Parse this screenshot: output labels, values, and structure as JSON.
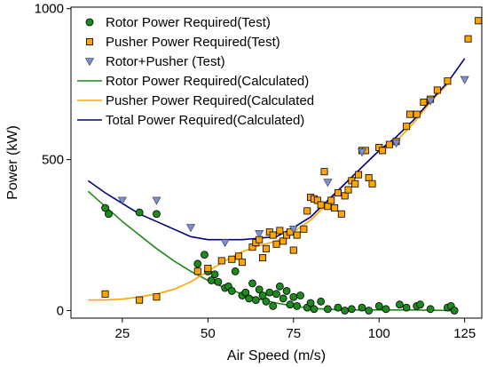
{
  "chart_data": {
    "type": "scatter",
    "title": "",
    "xlabel": "Air Speed (m/s)",
    "ylabel": "Power (kW)",
    "xlim": [
      10,
      130
    ],
    "ylim": [
      -25,
      1005
    ],
    "xticks": [
      25,
      50,
      75,
      100,
      125
    ],
    "yticks": [
      0,
      500,
      1000
    ],
    "grid": false,
    "legend_position": "top-left",
    "series": [
      {
        "name": "Rotor Power Required(Test)",
        "kind": "scatter",
        "marker": "circle",
        "color": "#1c8a1c",
        "points": [
          [
            20,
            340
          ],
          [
            21,
            320
          ],
          [
            30,
            325
          ],
          [
            35,
            320
          ],
          [
            47,
            155
          ],
          [
            49,
            185
          ],
          [
            50,
            130
          ],
          [
            51,
            100
          ],
          [
            52,
            120
          ],
          [
            53,
            95
          ],
          [
            55,
            75
          ],
          [
            56,
            80
          ],
          [
            57,
            65
          ],
          [
            58,
            130
          ],
          [
            60,
            50
          ],
          [
            61,
            60
          ],
          [
            62,
            40
          ],
          [
            63,
            90
          ],
          [
            64,
            35
          ],
          [
            65,
            70
          ],
          [
            66,
            50
          ],
          [
            67,
            30
          ],
          [
            68,
            60
          ],
          [
            69,
            15
          ],
          [
            70,
            55
          ],
          [
            71,
            80
          ],
          [
            72,
            40
          ],
          [
            73,
            65
          ],
          [
            74,
            20
          ],
          [
            75,
            45
          ],
          [
            76,
            15
          ],
          [
            77,
            50
          ],
          [
            79,
            10
          ],
          [
            80,
            25
          ],
          [
            81,
            5
          ],
          [
            83,
            30
          ],
          [
            85,
            5
          ],
          [
            88,
            10
          ],
          [
            90,
            0
          ],
          [
            92,
            5
          ],
          [
            95,
            10
          ],
          [
            97,
            0
          ],
          [
            100,
            15
          ],
          [
            102,
            5
          ],
          [
            106,
            20
          ],
          [
            108,
            10
          ],
          [
            111,
            15
          ],
          [
            112,
            20
          ],
          [
            115,
            5
          ],
          [
            120,
            10
          ],
          [
            121,
            15
          ],
          [
            122,
            0
          ]
        ]
      },
      {
        "name": "Pusher Power Required(Test)",
        "kind": "scatter",
        "marker": "square",
        "color": "#ffa500",
        "points": [
          [
            20,
            55
          ],
          [
            30,
            35
          ],
          [
            35,
            45
          ],
          [
            47,
            130
          ],
          [
            50,
            140
          ],
          [
            54,
            165
          ],
          [
            57,
            170
          ],
          [
            59,
            180
          ],
          [
            60,
            160
          ],
          [
            63,
            210
          ],
          [
            64,
            225
          ],
          [
            65,
            235
          ],
          [
            66,
            175
          ],
          [
            67,
            205
          ],
          [
            68,
            260
          ],
          [
            69,
            250
          ],
          [
            70,
            220
          ],
          [
            71,
            265
          ],
          [
            72,
            230
          ],
          [
            73,
            250
          ],
          [
            74,
            260
          ],
          [
            75,
            200
          ],
          [
            76,
            250
          ],
          [
            78,
            270
          ],
          [
            79,
            330
          ],
          [
            80,
            375
          ],
          [
            81,
            370
          ],
          [
            82,
            365
          ],
          [
            83,
            350
          ],
          [
            84,
            460
          ],
          [
            85,
            345
          ],
          [
            86,
            365
          ],
          [
            87,
            340
          ],
          [
            88,
            390
          ],
          [
            89,
            320
          ],
          [
            90,
            380
          ],
          [
            91,
            400
          ],
          [
            92,
            430
          ],
          [
            93,
            420
          ],
          [
            94,
            450
          ],
          [
            95,
            530
          ],
          [
            96,
            530
          ],
          [
            97,
            440
          ],
          [
            98,
            420
          ],
          [
            100,
            540
          ],
          [
            101,
            530
          ],
          [
            103,
            550
          ],
          [
            105,
            560
          ],
          [
            108,
            610
          ],
          [
            109,
            650
          ],
          [
            111,
            650
          ],
          [
            113,
            690
          ],
          [
            115,
            700
          ],
          [
            117,
            730
          ],
          [
            120,
            760
          ],
          [
            126,
            900
          ],
          [
            129,
            960
          ]
        ]
      },
      {
        "name": "Rotor+Pusher (Test)",
        "kind": "scatter",
        "marker": "triangle-down",
        "color": "#7b8fd8",
        "points": [
          [
            25,
            365
          ],
          [
            35,
            365
          ],
          [
            45,
            275
          ],
          [
            55,
            225
          ],
          [
            65,
            255
          ],
          [
            75,
            270
          ],
          [
            85,
            425
          ],
          [
            95,
            525
          ],
          [
            105,
            555
          ],
          [
            115,
            695
          ],
          [
            125,
            765
          ]
        ]
      },
      {
        "name": "Rotor Power Required(Calculated)",
        "kind": "line",
        "color": "#1c8a1c",
        "points": [
          [
            15,
            395
          ],
          [
            20,
            345
          ],
          [
            25,
            295
          ],
          [
            30,
            250
          ],
          [
            35,
            205
          ],
          [
            40,
            165
          ],
          [
            45,
            130
          ],
          [
            50,
            100
          ],
          [
            55,
            75
          ],
          [
            60,
            55
          ],
          [
            65,
            38
          ],
          [
            70,
            25
          ],
          [
            75,
            15
          ],
          [
            80,
            8
          ],
          [
            85,
            4
          ],
          [
            90,
            2
          ],
          [
            100,
            2
          ],
          [
            110,
            2
          ],
          [
            122,
            0
          ]
        ]
      },
      {
        "name": "Pusher Power Required(Calculated",
        "kind": "line",
        "color": "#ffa500",
        "points": [
          [
            15,
            35
          ],
          [
            20,
            35
          ],
          [
            25,
            38
          ],
          [
            30,
            45
          ],
          [
            35,
            55
          ],
          [
            40,
            70
          ],
          [
            45,
            95
          ],
          [
            50,
            130
          ],
          [
            55,
            165
          ],
          [
            60,
            195
          ],
          [
            65,
            215
          ],
          [
            70,
            230
          ],
          [
            75,
            260
          ],
          [
            80,
            300
          ],
          [
            85,
            355
          ],
          [
            90,
            420
          ],
          [
            95,
            475
          ],
          [
            100,
            530
          ],
          [
            105,
            560
          ],
          [
            110,
            620
          ],
          [
            115,
            690
          ],
          [
            120,
            750
          ]
        ]
      },
      {
        "name": "Total Power Required(Calculated)",
        "kind": "line",
        "color": "#00007f",
        "points": [
          [
            15,
            430
          ],
          [
            20,
            390
          ],
          [
            25,
            355
          ],
          [
            30,
            320
          ],
          [
            35,
            295
          ],
          [
            40,
            270
          ],
          [
            45,
            245
          ],
          [
            50,
            235
          ],
          [
            55,
            235
          ],
          [
            60,
            235
          ],
          [
            65,
            240
          ],
          [
            70,
            245
          ],
          [
            75,
            275
          ],
          [
            80,
            310
          ],
          [
            85,
            365
          ],
          [
            90,
            420
          ],
          [
            95,
            475
          ],
          [
            100,
            530
          ],
          [
            105,
            575
          ],
          [
            110,
            630
          ],
          [
            115,
            695
          ],
          [
            120,
            755
          ],
          [
            125,
            835
          ]
        ]
      }
    ]
  }
}
